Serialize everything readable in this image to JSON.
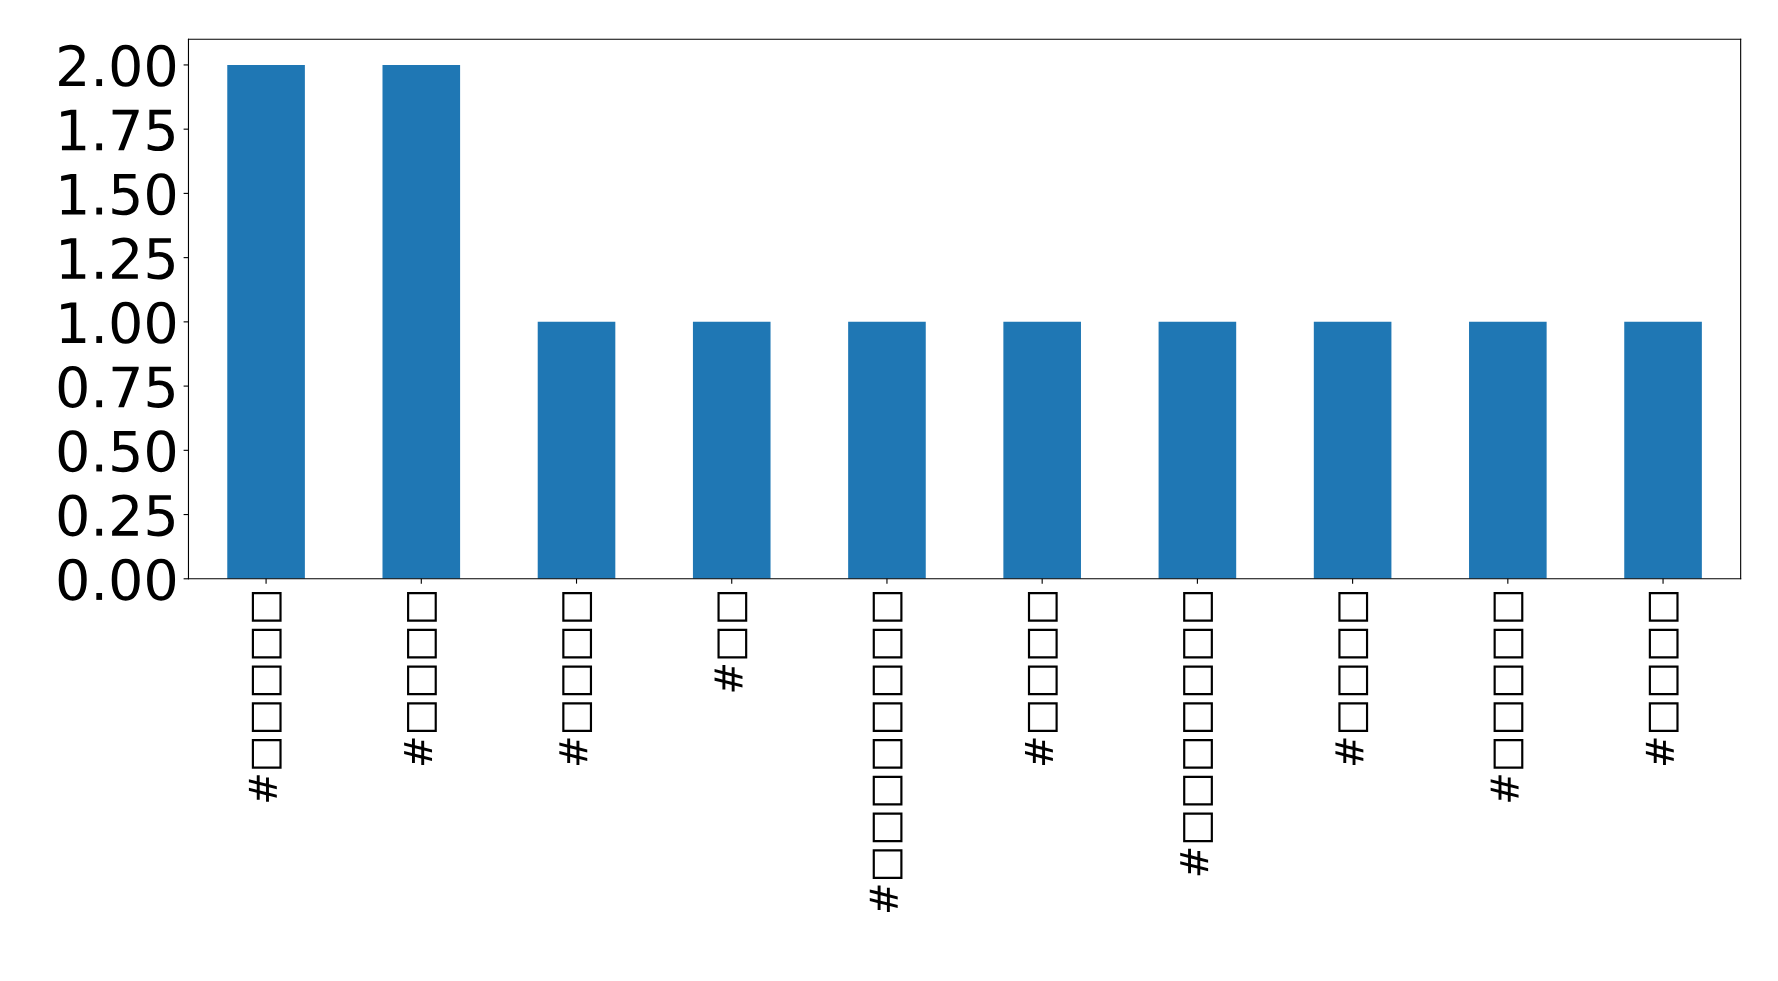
{
  "chart_data": {
    "type": "bar",
    "categories": [
      "#□□□□□",
      "#□□□□",
      "#□□□□",
      "#□□",
      "#□□□□□□□□",
      "#□□□□",
      "#□□□□□□□",
      "#□□□□",
      "#□□□□□",
      "#□□□□"
    ],
    "values": [
      2,
      2,
      1,
      1,
      1,
      1,
      1,
      1,
      1,
      1
    ],
    "color": "#1f77b4",
    "ylim": [
      0,
      2.1
    ],
    "yticks": [
      {
        "value": 0,
        "label": "0.00"
      },
      {
        "value": 0.25,
        "label": "0.25"
      },
      {
        "value": 0.5,
        "label": "0.50"
      },
      {
        "value": 0.75,
        "label": "0.75"
      },
      {
        "value": 1,
        "label": "1.00"
      },
      {
        "value": 1.25,
        "label": "1.25"
      },
      {
        "value": 1.5,
        "label": "1.50"
      },
      {
        "value": 1.75,
        "label": "1.75"
      },
      {
        "value": 2,
        "label": "2.00"
      }
    ],
    "grid": false
  }
}
